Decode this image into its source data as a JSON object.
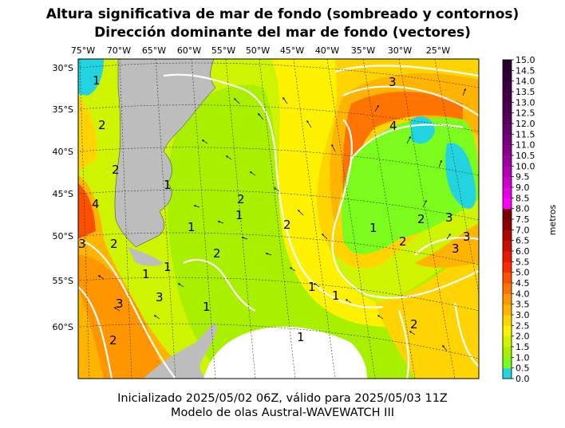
{
  "title_line1": "Altura significativa de mar de fondo (sombreado y contornos)",
  "title_line2": "Dirección dominante del mar de fondo (vectores)",
  "footer_line1": "Inicializado 2025/05/02 06Z, válido para 2025/05/03 11Z",
  "footer_line2": "Modelo de olas Austral-WAVEWATCH III",
  "lon_labels": [
    "75°W",
    "70°W",
    "65°W",
    "60°W",
    "55°W",
    "50°W",
    "45°W",
    "40°W",
    "35°W",
    "30°W",
    "25°W"
  ],
  "lat_labels": [
    "30°S",
    "35°S",
    "40°S",
    "45°S",
    "50°S",
    "55°S",
    "60°S"
  ],
  "colorbar": {
    "label": "metros",
    "ticks": [
      "0.0",
      "0.5",
      "1.0",
      "1.5",
      "2.0",
      "2.5",
      "3.0",
      "3.5",
      "4.0",
      "4.5",
      "5.0",
      "5.5",
      "6.0",
      "6.5",
      "7.0",
      "7.5",
      "8.0",
      "8.5",
      "9.0",
      "9.5",
      "10.0",
      "10.5",
      "11.0",
      "11.5",
      "12.0",
      "12.5",
      "13.0",
      "13.5",
      "14.0",
      "14.5",
      "15.0"
    ],
    "colors": [
      "#22d3e0",
      "#7cfc1c",
      "#a8f000",
      "#cff400",
      "#fff200",
      "#ffd400",
      "#ffb400",
      "#ff9600",
      "#ff7400",
      "#ff5000",
      "#ff2a00",
      "#e61800",
      "#c81000",
      "#aa0800",
      "#8c0000",
      "#7a0000",
      "#ff00ff",
      "#e600e6",
      "#cc00cc",
      "#b400b4",
      "#9c00a0",
      "#88008c",
      "#76007c",
      "#66006c",
      "#58005e",
      "#4c0052",
      "#420048",
      "#3a0040",
      "#320038",
      "#2a0030"
    ]
  },
  "contour_labels": [
    "1",
    "2",
    "3",
    "4"
  ],
  "map_colors": {
    "land": "#bdbdbd",
    "ice": "#ffffff",
    "grid": "#000000"
  }
}
